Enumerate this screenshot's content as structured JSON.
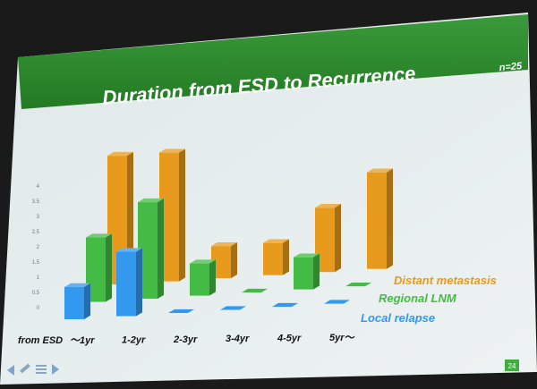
{
  "slide": {
    "title": "Duration from ESD to Recurrence",
    "n_label": "n=25",
    "x_axis_prefix": "from ESD",
    "page_badge": "24"
  },
  "chart_data": {
    "type": "bar",
    "title": "Duration from ESD to Recurrence",
    "categories": [
      "〜1yr",
      "1-2yr",
      "2-3yr",
      "3-4yr",
      "4-5yr",
      "5yr〜"
    ],
    "series": [
      {
        "name": "Local relapse",
        "color": "#3399ee",
        "values": [
          1,
          2,
          0,
          0,
          0,
          0
        ]
      },
      {
        "name": "Regional LNM",
        "color": "#44bb44",
        "values": [
          2,
          3,
          1,
          0,
          1,
          0
        ]
      },
      {
        "name": "Distant metastasis",
        "color": "#e89a1c",
        "values": [
          4,
          4,
          1,
          1,
          2,
          3
        ]
      }
    ],
    "y_ticks": [
      "0",
      "0.5",
      "1",
      "1.5",
      "2",
      "2.5",
      "3",
      "3.5",
      "4"
    ],
    "ylim": [
      0,
      4
    ],
    "legend_position": "right"
  },
  "colors": {
    "header": "#2e8b2e",
    "local": "#3399ee",
    "regional": "#44bb44",
    "distant": "#e89a1c"
  },
  "icons": [
    "back-arrow-icon",
    "pen-icon",
    "menu-icon",
    "forward-arrow-icon"
  ]
}
